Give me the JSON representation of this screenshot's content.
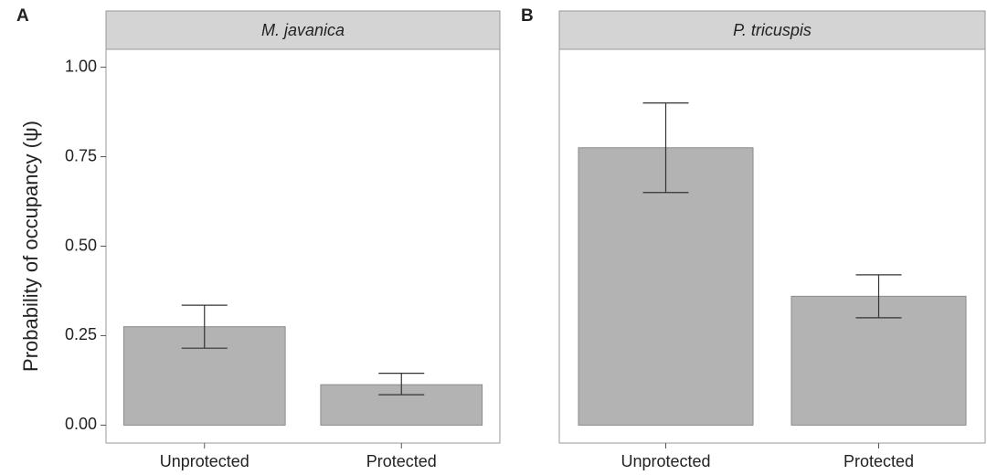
{
  "chart_data": [
    {
      "type": "bar",
      "panel_label": "A",
      "title": "M. javanica",
      "ylabel": "Probability of occupancy (ψ)",
      "categories": [
        "Unprotected",
        "Protected"
      ],
      "values": [
        0.275,
        0.113
      ],
      "lower": [
        0.215,
        0.085
      ],
      "upper": [
        0.335,
        0.145
      ],
      "color": "#b3b3b3",
      "ylim": [
        -0.05,
        1.05
      ],
      "yticks": [
        {
          "value": 0,
          "label": "0.00"
        },
        {
          "value": 0.25,
          "label": "0.25"
        },
        {
          "value": 0.5,
          "label": "0.50"
        },
        {
          "value": 0.75,
          "label": "0.75"
        },
        {
          "value": 1,
          "label": "1.00"
        }
      ]
    },
    {
      "type": "bar",
      "panel_label": "B",
      "title": "P. tricuspis",
      "categories": [
        "Unprotected",
        "Protected"
      ],
      "values": [
        0.775,
        0.36
      ],
      "lower": [
        0.65,
        0.3
      ],
      "upper": [
        0.9,
        0.42
      ],
      "color": "#b3b3b3",
      "ylim": [
        -0.05,
        1.05
      ]
    }
  ]
}
